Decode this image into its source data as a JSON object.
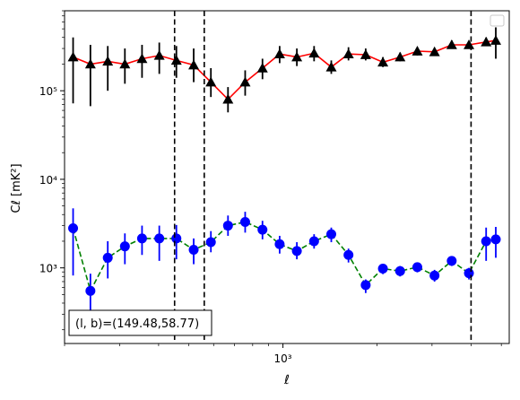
{
  "chart_data": {
    "type": "scatter",
    "title": "",
    "xlabel": "ℓ",
    "ylabel": "Cℓ  [mK²]",
    "xscale": "log",
    "yscale": "log",
    "xlim": [
      200,
      5300
    ],
    "ylim": [
      140,
      800000
    ],
    "grid": false,
    "legend": "top-right",
    "x_ticks": [
      {
        "value": 1000,
        "label": "10³"
      }
    ],
    "y_ticks": [
      {
        "value": 1000,
        "label": "10³"
      },
      {
        "value": 10000,
        "label": "10⁴"
      },
      {
        "value": 100000,
        "label": "10⁵"
      }
    ],
    "vlines": [
      450,
      560,
      4000
    ],
    "annotation": "(l, b)=(149.48,58.77)",
    "series": [
      {
        "marker": "triangle",
        "marker_color": "#000000",
        "line_color": "#ff0000",
        "line_style": "solid",
        "error_color": "#000000",
        "x": [
          213,
          242,
          275,
          312,
          354,
          402,
          456,
          518,
          588,
          667,
          757,
          860,
          976,
          1108,
          1258,
          1428,
          1621,
          1840,
          2089,
          2371,
          2692,
          3056,
          3469,
          3938,
          4470,
          4800
        ],
        "y": [
          240000,
          200000,
          215000,
          200000,
          230000,
          250000,
          220000,
          195000,
          125000,
          80000,
          125000,
          180000,
          260000,
          240000,
          265000,
          185000,
          260000,
          255000,
          210000,
          240000,
          280000,
          275000,
          330000,
          330000,
          355000,
          370000
        ],
        "yerr_low": [
          72000,
          67000,
          100000,
          120000,
          140000,
          155000,
          140000,
          125000,
          85000,
          57000,
          88000,
          135000,
          205000,
          190000,
          215000,
          155000,
          220000,
          220000,
          185000,
          215000,
          250000,
          250000,
          300000,
          300000,
          320000,
          230000
        ],
        "yerr_high": [
          400000,
          330000,
          320000,
          300000,
          330000,
          350000,
          320000,
          300000,
          180000,
          110000,
          170000,
          230000,
          320000,
          300000,
          320000,
          220000,
          310000,
          300000,
          240000,
          270000,
          310000,
          300000,
          370000,
          360000,
          400000,
          520000
        ]
      },
      {
        "marker": "circle",
        "marker_color": "#0000ff",
        "line_color": "#008000",
        "line_style": "dashed",
        "error_color": "#0000ff",
        "x": [
          213,
          242,
          275,
          312,
          354,
          402,
          456,
          518,
          588,
          667,
          757,
          860,
          976,
          1108,
          1258,
          1428,
          1621,
          1840,
          2089,
          2371,
          2692,
          3056,
          3469,
          3938,
          4470,
          4800
        ],
        "y": [
          2800,
          550,
          1300,
          1750,
          2150,
          2150,
          2150,
          1600,
          1950,
          3000,
          3300,
          2700,
          1850,
          1550,
          2000,
          2400,
          1400,
          640,
          980,
          920,
          1020,
          820,
          1200,
          870,
          2000,
          2100
        ],
        "yerr_low": [
          820,
          230,
          760,
          1100,
          1400,
          1200,
          1250,
          1100,
          1500,
          2300,
          2500,
          2100,
          1450,
          1250,
          1650,
          1950,
          1150,
          520,
          850,
          800,
          890,
          700,
          1050,
          740,
          1200,
          1300
        ],
        "yerr_high": [
          4700,
          860,
          2000,
          2450,
          3000,
          3000,
          3050,
          2150,
          2600,
          3900,
          4300,
          3400,
          2300,
          1950,
          2400,
          2850,
          1650,
          740,
          1100,
          1050,
          1150,
          950,
          1350,
          1000,
          2850,
          2900
        ]
      }
    ]
  }
}
